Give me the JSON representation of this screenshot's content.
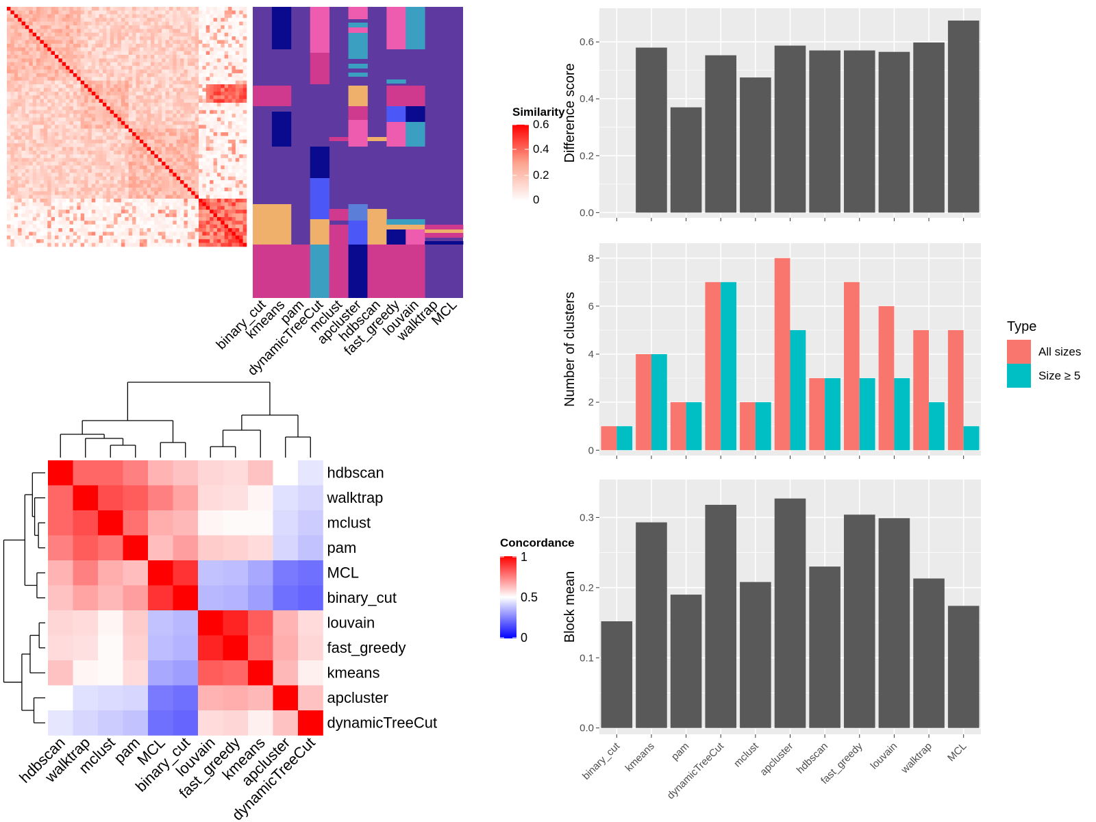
{
  "methods": [
    "binary_cut",
    "kmeans",
    "pam",
    "dynamicTreeCut",
    "mclust",
    "apcluster",
    "hdbscan",
    "fast_greedy",
    "louvain",
    "walktrap",
    "MCL"
  ],
  "similarity_legend": {
    "title": "Similarity",
    "ticks": [
      "0.6",
      "0.4",
      "0.2",
      "0"
    ]
  },
  "concordance_legend": {
    "title": "Concordance",
    "ticks": [
      "1",
      "0.5",
      "0"
    ]
  },
  "concordance_order": [
    "hdbscan",
    "walktrap",
    "mclust",
    "pam",
    "MCL",
    "binary_cut",
    "louvain",
    "fast_greedy",
    "kmeans",
    "apcluster",
    "dynamicTreeCut"
  ],
  "concordance_matrix": [
    [
      1.0,
      0.8,
      0.8,
      0.75,
      0.65,
      0.62,
      0.58,
      0.57,
      0.62,
      0.5,
      0.45
    ],
    [
      0.8,
      1.0,
      0.85,
      0.82,
      0.75,
      0.68,
      0.57,
      0.56,
      0.52,
      0.44,
      0.42
    ],
    [
      0.8,
      0.85,
      1.0,
      0.78,
      0.66,
      0.64,
      0.52,
      0.51,
      0.51,
      0.43,
      0.4
    ],
    [
      0.75,
      0.82,
      0.78,
      1.0,
      0.63,
      0.69,
      0.6,
      0.59,
      0.57,
      0.42,
      0.38
    ],
    [
      0.65,
      0.75,
      0.66,
      0.63,
      1.0,
      0.9,
      0.38,
      0.37,
      0.33,
      0.24,
      0.22
    ],
    [
      0.62,
      0.68,
      0.64,
      0.69,
      0.9,
      1.0,
      0.36,
      0.35,
      0.31,
      0.22,
      0.2
    ],
    [
      0.58,
      0.57,
      0.52,
      0.6,
      0.38,
      0.36,
      1.0,
      0.93,
      0.82,
      0.65,
      0.57
    ],
    [
      0.57,
      0.56,
      0.51,
      0.59,
      0.37,
      0.35,
      0.93,
      1.0,
      0.8,
      0.66,
      0.58
    ],
    [
      0.62,
      0.52,
      0.51,
      0.57,
      0.33,
      0.31,
      0.82,
      0.8,
      1.0,
      0.64,
      0.53
    ],
    [
      0.5,
      0.44,
      0.43,
      0.42,
      0.24,
      0.22,
      0.65,
      0.66,
      0.64,
      1.0,
      0.62
    ],
    [
      0.45,
      0.42,
      0.4,
      0.38,
      0.22,
      0.2,
      0.57,
      0.58,
      0.53,
      0.62,
      1.0
    ]
  ],
  "chart_data": [
    {
      "type": "bar",
      "categories": [
        "binary_cut",
        "kmeans",
        "pam",
        "dynamicTreeCut",
        "mclust",
        "apcluster",
        "hdbscan",
        "fast_greedy",
        "louvain",
        "walktrap",
        "MCL"
      ],
      "values": [
        0,
        0.58,
        0.37,
        0.553,
        0.475,
        0.587,
        0.57,
        0.57,
        0.565,
        0.598,
        0.675
      ],
      "xlabel": "",
      "ylabel": "Difference score",
      "ylim": [
        0,
        0.7
      ],
      "yticks": [
        "0.0",
        "0.2",
        "0.4",
        "0.6"
      ],
      "color": "#595959"
    },
    {
      "type": "bar",
      "categories": [
        "binary_cut",
        "kmeans",
        "pam",
        "dynamicTreeCut",
        "mclust",
        "apcluster",
        "hdbscan",
        "fast_greedy",
        "louvain",
        "walktrap",
        "MCL"
      ],
      "series": [
        {
          "name": "All sizes",
          "values": [
            1,
            4,
            2,
            7,
            2,
            8,
            3,
            7,
            6,
            5,
            5
          ],
          "color": "#F8766D"
        },
        {
          "name": "Size ≥ 5",
          "values": [
            1,
            4,
            2,
            7,
            2,
            5,
            3,
            3,
            3,
            2,
            1
          ],
          "color": "#00BFC4"
        }
      ],
      "xlabel": "",
      "ylabel": "Number of clusters",
      "ylim": [
        0,
        8.4
      ],
      "yticks": [
        "0",
        "2",
        "4",
        "6",
        "8"
      ],
      "legend": {
        "title": "Type",
        "placement": "right"
      }
    },
    {
      "type": "bar",
      "categories": [
        "binary_cut",
        "kmeans",
        "pam",
        "dynamicTreeCut",
        "mclust",
        "apcluster",
        "hdbscan",
        "fast_greedy",
        "louvain",
        "walktrap",
        "MCL"
      ],
      "values": [
        0.152,
        0.293,
        0.19,
        0.318,
        0.208,
        0.327,
        0.23,
        0.304,
        0.299,
        0.213,
        0.174
      ],
      "xlabel": "",
      "ylabel": "Block mean",
      "ylim": [
        0,
        0.345
      ],
      "yticks": [
        "0.0",
        "0.1",
        "0.2",
        "0.3"
      ],
      "color": "#595959"
    }
  ]
}
